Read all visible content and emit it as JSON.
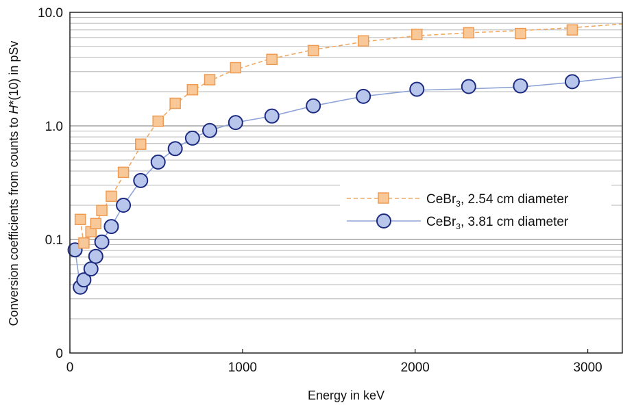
{
  "chart_data": {
    "type": "scatter",
    "title": "",
    "xlabel": "Energy in keV",
    "ylabel_parts": [
      "Conversion coefficients from counts to ",
      "H",
      "*(10) in pSv"
    ],
    "ylabel": "Conversion coefficients from counts to H*(10) in pSv",
    "xlim": [
      0,
      3200
    ],
    "ylim": [
      0.01,
      10
    ],
    "y_scale": "log",
    "x_ticks": [
      0,
      1000,
      2000,
      3000
    ],
    "x_tick_labels": [
      "0",
      "1000",
      "2000",
      "3000"
    ],
    "y_ticks": [
      0.01,
      0.1,
      1,
      10
    ],
    "y_tick_labels": [
      "0",
      "0.1",
      "1.0",
      "10.0"
    ],
    "grid": "horizontal minor log gridlines",
    "legend_position": "right-center",
    "series": [
      {
        "name_main": "CeBr",
        "name_sub": "3",
        "name_rest": ", 2.54 cm diameter",
        "name": "CeBr3, 2.54 cm diameter",
        "marker": "square",
        "line_style": "dashed",
        "color": "#f0a860",
        "fill": "#f8c898",
        "x": [
          60,
          81,
          122,
          150,
          185,
          240,
          310,
          410,
          511,
          610,
          710,
          810,
          960,
          1170,
          1410,
          1700,
          2010,
          2310,
          2610,
          2910
        ],
        "y": [
          0.15,
          0.093,
          0.117,
          0.138,
          0.18,
          0.24,
          0.39,
          0.69,
          1.1,
          1.58,
          2.08,
          2.55,
          3.25,
          3.85,
          4.6,
          5.6,
          6.4,
          6.6,
          6.5,
          7.0
        ],
        "fit_x": [
          60,
          81,
          110,
          150,
          200,
          260,
          330,
          410,
          500,
          600,
          700,
          800,
          950,
          1150,
          1400,
          1700,
          2000,
          2300,
          2600,
          2900,
          3200
        ],
        "fit_y": [
          0.15,
          0.09,
          0.11,
          0.14,
          0.19,
          0.27,
          0.41,
          0.66,
          1.05,
          1.5,
          2.0,
          2.45,
          3.1,
          3.85,
          4.65,
          5.5,
          6.2,
          6.6,
          6.9,
          7.3,
          7.9
        ]
      },
      {
        "name_main": "CeBr",
        "name_sub": "3",
        "name_rest": ", 3.81 cm diameter",
        "name": "CeBr3, 3.81 cm diameter",
        "marker": "circle",
        "line_style": "solid",
        "color": "#8ea4d8",
        "fill": "#b8c6ec",
        "edge": "#1c2a80",
        "x": [
          30,
          60,
          81,
          122,
          150,
          185,
          240,
          310,
          410,
          511,
          610,
          710,
          810,
          960,
          1170,
          1410,
          1700,
          2010,
          2310,
          2610,
          2910
        ],
        "y": [
          0.081,
          0.038,
          0.044,
          0.055,
          0.071,
          0.095,
          0.13,
          0.2,
          0.33,
          0.48,
          0.63,
          0.78,
          0.91,
          1.07,
          1.22,
          1.5,
          1.82,
          2.1,
          2.22,
          2.25,
          2.45
        ],
        "fit_x": [
          30,
          60,
          81,
          122,
          150,
          185,
          240,
          310,
          410,
          511,
          610,
          710,
          810,
          960,
          1170,
          1410,
          1700,
          2010,
          2310,
          2610,
          2910,
          3200
        ],
        "fit_y": [
          0.081,
          0.038,
          0.044,
          0.055,
          0.071,
          0.095,
          0.13,
          0.2,
          0.33,
          0.48,
          0.63,
          0.78,
          0.91,
          1.07,
          1.22,
          1.5,
          1.82,
          2.06,
          2.12,
          2.2,
          2.42,
          2.7
        ]
      }
    ]
  }
}
